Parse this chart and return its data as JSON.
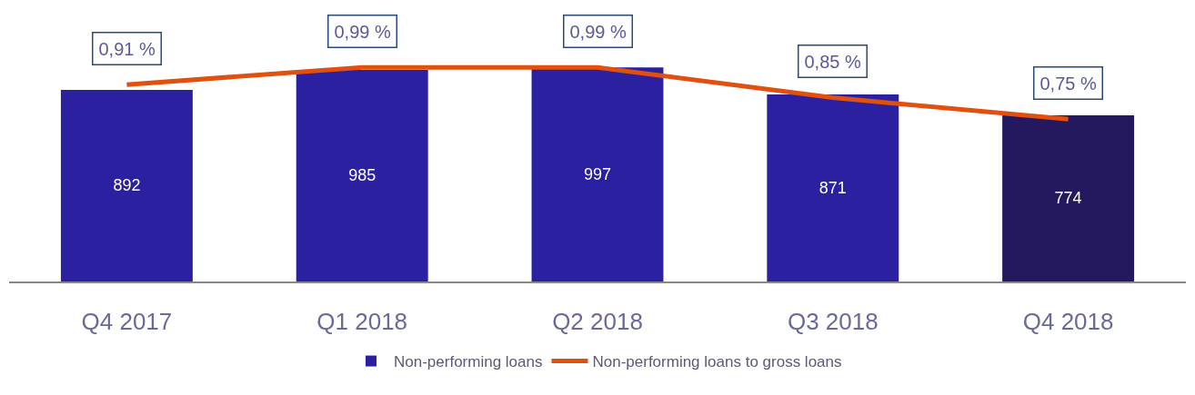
{
  "chart_data": {
    "type": "bar",
    "categories": [
      "Q4 2017",
      "Q1 2018",
      "Q2 2018",
      "Q3 2018",
      "Q4 2018"
    ],
    "data_labels": true,
    "legend": "bottom",
    "grid": false,
    "series": [
      {
        "name": "Non-performing loans",
        "colors": [
          "#2a20a0",
          "#2a20a0",
          "#2a20a0",
          "#2a20a0",
          "#24185e"
        ],
        "values": [
          892,
          985,
          997,
          871,
          774
        ]
      },
      {
        "name": "Non-performing loans to gross loans",
        "type": "line",
        "axis": "y2",
        "color": "#e2500f",
        "marker": "none",
        "line_style": "solid",
        "values": [
          0.91,
          0.99,
          0.99,
          0.85,
          0.75
        ],
        "value_labels": [
          "0,91 %",
          "0,99 %",
          "0,99 %",
          "0,85 %",
          "0,75 %"
        ]
      }
    ]
  }
}
